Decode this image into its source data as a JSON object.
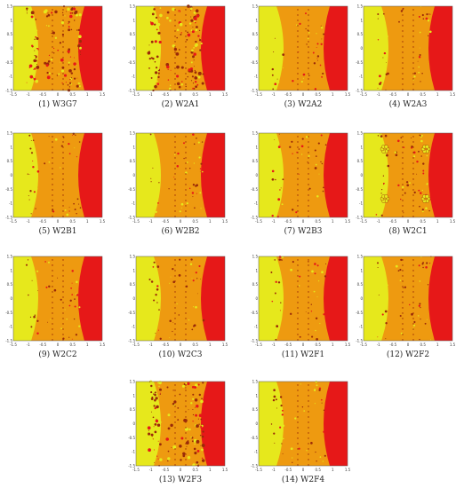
{
  "figure": {
    "panels": [
      {
        "caption": "(1)  W3G7",
        "style": "busy"
      },
      {
        "caption": "(2)  W2A1",
        "style": "busy"
      },
      {
        "caption": "(3)  W2A2",
        "style": "calm"
      },
      {
        "caption": "(4)  W2A3",
        "style": "calm"
      },
      {
        "caption": "(5)  W2B1",
        "style": "calm"
      },
      {
        "caption": "(6)  W2B2",
        "style": "calm"
      },
      {
        "caption": "(7)  W2B3",
        "style": "calm"
      },
      {
        "caption": "(8)  W2C1",
        "style": "flower"
      },
      {
        "caption": "(9)  W2C2",
        "style": "calm"
      },
      {
        "caption": "(10)  W2C3",
        "style": "calm"
      },
      {
        "caption": "(11)  W2F1",
        "style": "calm"
      },
      {
        "caption": "(12)  W2F2",
        "style": "calm"
      },
      {
        "caption": "(13)  W2F3",
        "style": "busy"
      },
      {
        "caption": "(14)  W2F4",
        "style": "calm"
      }
    ],
    "axis_ticks": {
      "x": [
        "-1.5",
        "-1",
        "-0.5",
        "0",
        "0.5",
        "1",
        "1.5"
      ],
      "y": [
        "1.5",
        "1",
        "0.5",
        "0",
        "-0.5",
        "-1",
        "-1.5"
      ]
    },
    "colors": {
      "yellow_basin": "#e6e81c",
      "orange_basin": "#ee9a10",
      "red_basin": "#e61818",
      "dark_spot": "#9a2a08"
    }
  }
}
